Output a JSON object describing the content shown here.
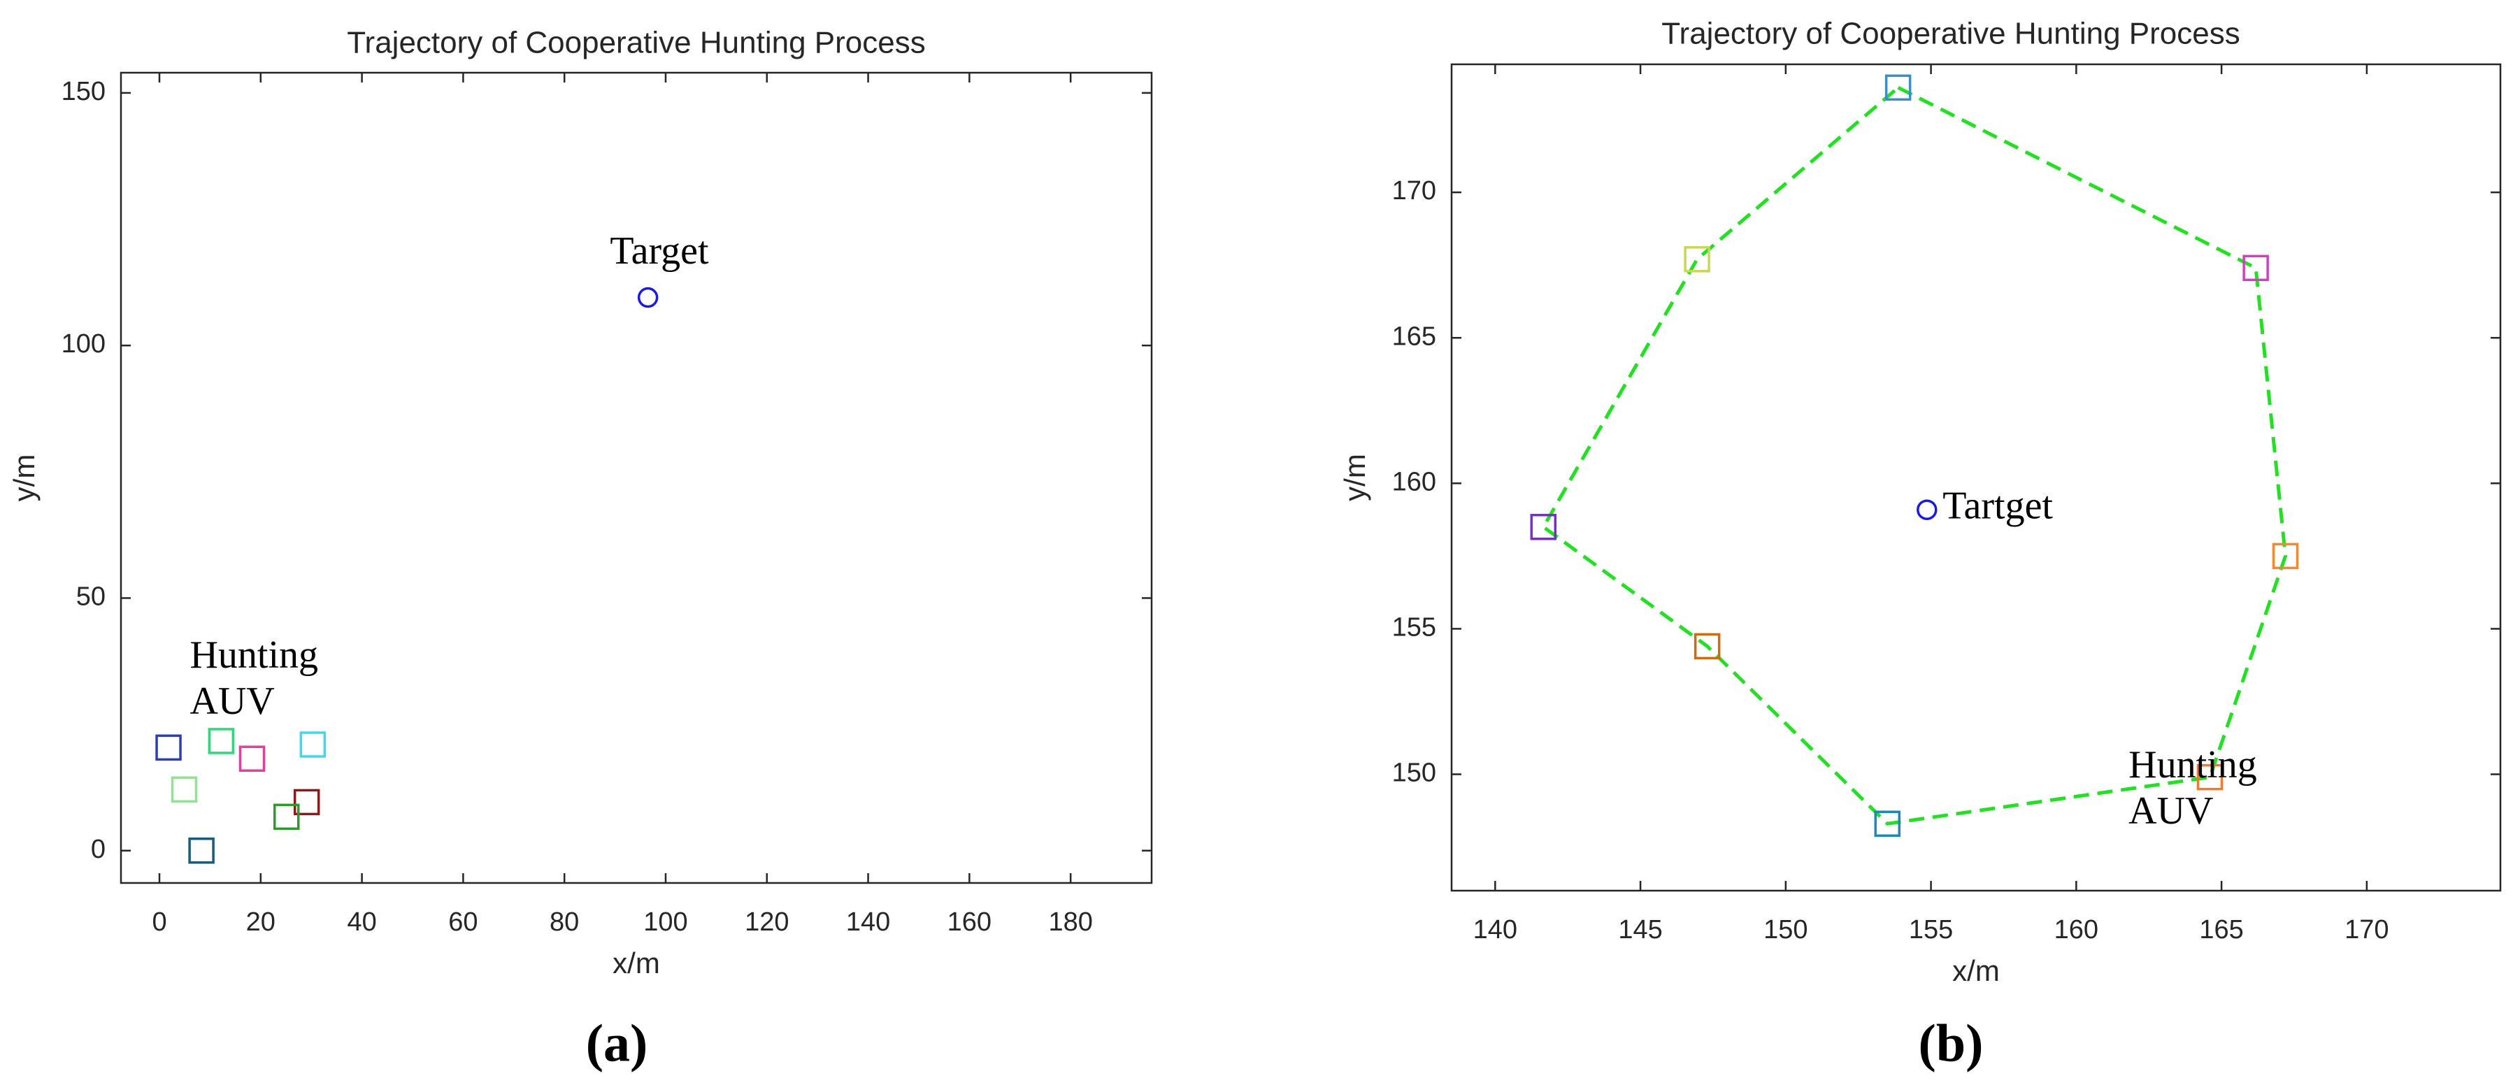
{
  "chart_data": [
    {
      "type": "scatter",
      "title": "Trajectory of Cooperative Hunting Process",
      "x_label": "x/m",
      "y_label": "y/m",
      "caption": "(a)",
      "xlim": [
        -7.6,
        196
      ],
      "ylim": [
        -6.4,
        154
      ],
      "xticks": [
        0,
        20,
        40,
        60,
        80,
        100,
        120,
        140,
        160,
        180
      ],
      "yticks": [
        0,
        50,
        100,
        150
      ],
      "series": [
        {
          "marker": "circle",
          "color": "#1a1ae6",
          "x": [
            96.5
          ],
          "values": [
            109.5
          ]
        },
        {
          "marker": "square",
          "colors": [
            "#2a3fb8",
            "#33d67a",
            "#8ce68c",
            "#e0409a",
            "#40d8f0",
            "#8b1a1a",
            "#2e9a2e",
            "#1a5a7a"
          ],
          "x": [
            1.8,
            12.2,
            4.9,
            18.3,
            30.3,
            29.1,
            25.1,
            8.3
          ],
          "values": [
            20.4,
            21.7,
            12.1,
            18.2,
            21.0,
            9.6,
            6.7,
            0
          ]
        }
      ],
      "annotations": [
        {
          "lines": [
            "Target"
          ],
          "x": 89,
          "y": 118,
          "anchor": "start"
        },
        {
          "lines": [
            "Hunting",
            "AUV"
          ],
          "x": 6,
          "y": 38,
          "anchor": "start"
        }
      ]
    },
    {
      "type": "scatter",
      "title": "Trajectory of Cooperative Hunting Process",
      "x_label": "x/m",
      "y_label": "y/m",
      "caption": "(b)",
      "xlim": [
        138.5,
        174.6
      ],
      "ylim": [
        146.0,
        174.4
      ],
      "xticks": [
        140,
        145,
        150,
        155,
        160,
        165,
        170
      ],
      "yticks": [
        150,
        155,
        160,
        165,
        170
      ],
      "series": [
        {
          "marker": "none",
          "line": "dashed",
          "color": "#22e022",
          "x": [
            153.87,
            166.18,
            167.2,
            164.6,
            153.5,
            147.3,
            141.66,
            146.95,
            153.87
          ],
          "values": [
            173.6,
            167.4,
            157.5,
            149.9,
            148.3,
            154.4,
            158.5,
            167.7,
            173.6
          ]
        },
        {
          "marker": "circle",
          "color": "#1a1ae6",
          "x": [
            154.86
          ],
          "values": [
            159.09
          ]
        },
        {
          "marker": "square",
          "colors": [
            "#3a8fc8",
            "#d040c0",
            "#f08a30",
            "#f07a30",
            "#1a8ab8",
            "#d06a10",
            "#7a2ad0",
            "#c8d850"
          ],
          "x": [
            153.87,
            166.18,
            167.2,
            164.6,
            153.5,
            147.3,
            141.66,
            146.95
          ],
          "values": [
            173.6,
            167.4,
            157.5,
            149.9,
            148.3,
            154.4,
            158.5,
            167.7
          ]
        }
      ],
      "annotations": [
        {
          "lines": [
            "Tartget"
          ],
          "x": 155.4,
          "y": 159.1,
          "anchor": "start"
        },
        {
          "lines": [
            "Hunting",
            "AUV"
          ],
          "x": 161.8,
          "y": 150.2,
          "anchor": "start"
        }
      ]
    }
  ]
}
